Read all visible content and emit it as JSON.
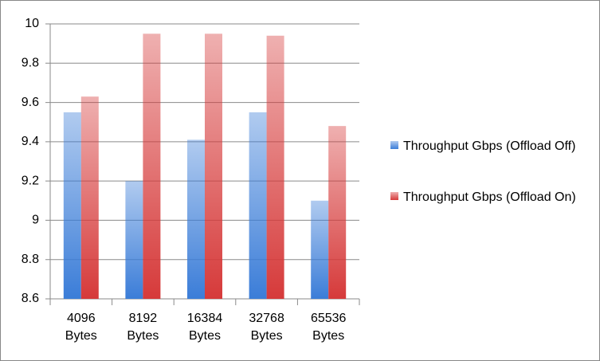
{
  "chart_data": {
    "type": "bar",
    "categories": [
      "4096 Bytes",
      "8192 Bytes",
      "16384 Bytes",
      "32768 Bytes",
      "65536 Bytes"
    ],
    "series": [
      {
        "name": "Throughput Gbps (Offload Off)",
        "color": "#3b7dd8",
        "values": [
          9.55,
          9.2,
          9.41,
          9.55,
          9.1
        ]
      },
      {
        "name": "Throughput Gbps (Offload On)",
        "color": "#d63a3a",
        "values": [
          9.63,
          9.95,
          9.95,
          9.94,
          9.48
        ]
      }
    ],
    "ylim": [
      8.6,
      10
    ],
    "yticks": [
      8.6,
      8.8,
      9,
      9.2,
      9.4,
      9.6,
      9.8,
      10
    ],
    "grid": true,
    "legend": "right"
  }
}
